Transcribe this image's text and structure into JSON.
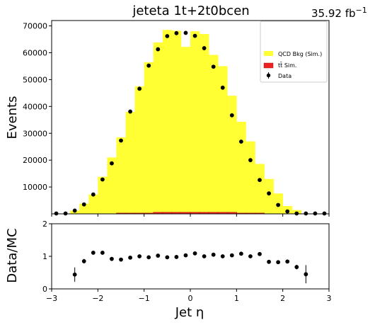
{
  "title": "jeteta  1t+2t0bcen",
  "luminosity": "35.92 fb",
  "luminosity_exponent": "−1",
  "chart_data": [
    {
      "type": "bar",
      "panel": "main",
      "ylabel": "Events",
      "xlim": [
        -3,
        3
      ],
      "ylim": [
        0,
        72000
      ],
      "yticks": [
        10000,
        20000,
        30000,
        40000,
        50000,
        60000,
        70000
      ],
      "bin_edges": [
        -3.0,
        -2.8,
        -2.6,
        -2.4,
        -2.2,
        -2.0,
        -1.8,
        -1.6,
        -1.4,
        -1.2,
        -1.0,
        -0.8,
        -0.6,
        -0.4,
        -0.2,
        0.0,
        0.2,
        0.4,
        0.6,
        0.8,
        1.0,
        1.2,
        1.4,
        1.6,
        1.8,
        2.0,
        2.2,
        2.4,
        2.6,
        2.8,
        3.0
      ],
      "series": [
        {
          "name": "QCD Bkg (Sim.)",
          "color": "#ffff33",
          "values": [
            0,
            0,
            1200,
            3800,
            7200,
            13800,
            21000,
            28500,
            38000,
            47500,
            56500,
            63800,
            68500,
            68200,
            62200,
            68000,
            67000,
            59200,
            55000,
            44000,
            34300,
            27000,
            18600,
            13000,
            7600,
            2900,
            1400,
            0,
            0,
            0
          ]
        },
        {
          "name": "tt̄ Sim.",
          "color": "#ee2222",
          "values": [
            0,
            0,
            0,
            0,
            0,
            0,
            0,
            300,
            300,
            300,
            300,
            600,
            600,
            600,
            600,
            600,
            600,
            600,
            600,
            600,
            300,
            300,
            300,
            0,
            0,
            0,
            0,
            0,
            0,
            0
          ]
        }
      ],
      "data_points": {
        "name": "Data",
        "color": "#000000",
        "x": [
          -2.9,
          -2.7,
          -2.5,
          -2.3,
          -2.1,
          -1.9,
          -1.7,
          -1.5,
          -1.3,
          -1.1,
          -0.9,
          -0.7,
          -0.5,
          -0.3,
          -0.1,
          0.1,
          0.3,
          0.5,
          0.7,
          0.9,
          1.1,
          1.3,
          1.5,
          1.7,
          1.9,
          2.1,
          2.3,
          2.5,
          2.7,
          2.9
        ],
        "y": [
          0,
          0,
          1200,
          3500,
          7200,
          12800,
          18800,
          27300,
          38100,
          46600,
          55200,
          61300,
          66200,
          67300,
          67400,
          66300,
          61700,
          54800,
          47000,
          36700,
          26900,
          20000,
          12600,
          7600,
          3300,
          900,
          0,
          0,
          0,
          0
        ]
      },
      "legend_position": "top-right"
    },
    {
      "type": "scatter",
      "panel": "ratio",
      "xlabel": "Jet η",
      "ylabel": "Data/MC",
      "xlim": [
        -3,
        3
      ],
      "ylim": [
        0,
        2
      ],
      "xticks": [
        -3,
        -2,
        -1,
        0,
        1,
        2,
        3
      ],
      "yticks": [
        0,
        1,
        2
      ],
      "x": [
        -2.5,
        -2.3,
        -2.1,
        -1.9,
        -1.7,
        -1.5,
        -1.3,
        -1.1,
        -0.9,
        -0.7,
        -0.5,
        -0.3,
        -0.1,
        0.1,
        0.3,
        0.5,
        0.7,
        0.9,
        1.1,
        1.3,
        1.5,
        1.7,
        1.9,
        2.1,
        2.3,
        2.5
      ],
      "y": [
        0.44,
        0.85,
        1.11,
        1.11,
        0.92,
        0.9,
        0.96,
        1.0,
        0.97,
        1.02,
        0.97,
        0.98,
        1.03,
        1.09,
        1.0,
        1.05,
        1.0,
        1.03,
        1.08,
        1.0,
        1.07,
        0.83,
        0.82,
        0.84,
        0.67,
        0.45
      ],
      "yerr": [
        0.22,
        0.07,
        0.04,
        0.03,
        0.02,
        0.02,
        0.02,
        0.02,
        0.02,
        0.02,
        0.02,
        0.02,
        0.02,
        0.02,
        0.02,
        0.02,
        0.02,
        0.02,
        0.02,
        0.02,
        0.02,
        0.03,
        0.04,
        0.06,
        0.07,
        0.28
      ]
    }
  ]
}
